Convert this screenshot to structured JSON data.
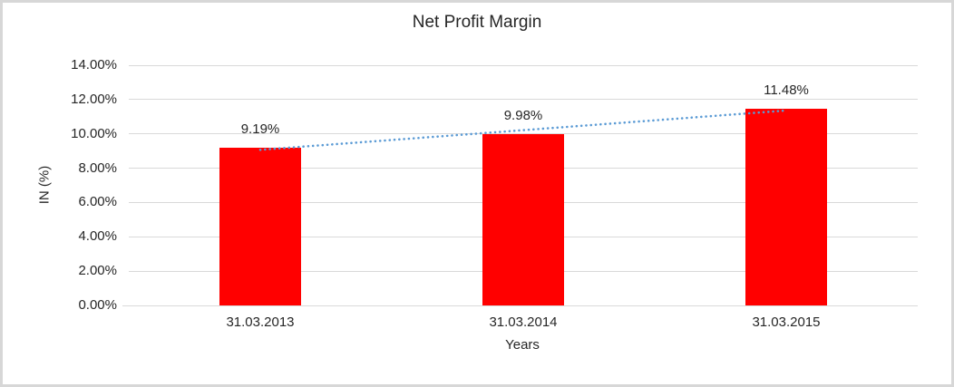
{
  "chart_data": {
    "type": "bar",
    "title": "Net Profit Margin",
    "xlabel": "Years",
    "ylabel": "IN (%)",
    "categories": [
      "31.03.2013",
      "31.03.2014",
      "31.03.2015"
    ],
    "values": [
      9.19,
      9.98,
      11.48
    ],
    "value_labels": [
      "9.19%",
      "9.98%",
      "11.48%"
    ],
    "y_tick_values": [
      0,
      2,
      4,
      6,
      8,
      10,
      12,
      14
    ],
    "y_tick_labels": [
      "0.00%",
      "2.00%",
      "4.00%",
      "6.00%",
      "8.00%",
      "10.00%",
      "12.00%",
      "14.00%"
    ],
    "ylim": [
      0,
      14
    ],
    "grid": true,
    "legend": "none",
    "trendline": {
      "type": "linear",
      "style": "dotted"
    },
    "colors": {
      "bar": "#ff0000",
      "trendline": "#5b9bd5",
      "gridline": "#d9d9d9",
      "axis_line": "#d9d9d9",
      "frame_border": "#d7d7d7",
      "text": "#262626"
    }
  }
}
